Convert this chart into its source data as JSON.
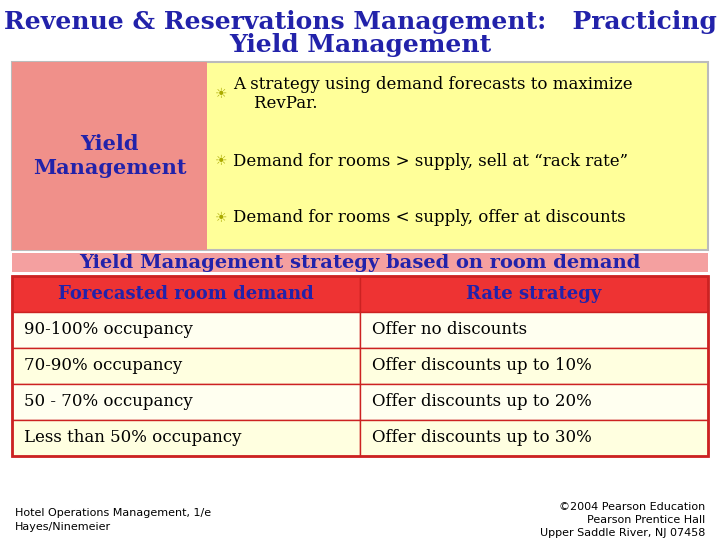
{
  "title_line1": "Revenue & Reservations Management:   Practicing",
  "title_line2": "Yield Management",
  "title_color": "#2222AA",
  "title_fontsize": 18,
  "bg_color": "#FFFFFF",
  "left_box_label": "Yield\nManagement",
  "left_box_bg": "#F0908A",
  "left_box_text_color": "#2222AA",
  "right_box_bg": "#FFFF99",
  "right_box_border": "#AAAAAA",
  "bullet_points": [
    "A strategy using demand forecasts to maximize\n    RevPar.",
    "Demand for rooms > supply, sell at “rack rate”",
    "Demand for rooms < supply, offer at discounts"
  ],
  "bullet_color": "#AAAA00",
  "bullet_text_color": "#000000",
  "bullet_fontsize": 12,
  "section_bar_text": "Yield Management strategy based on room demand",
  "section_bar_bg": "#F4A0A0",
  "section_bar_text_color": "#2222AA",
  "section_bar_fontsize": 14,
  "table_header": [
    "Forecasted room demand",
    "Rate strategy"
  ],
  "table_header_bg_left": "#DD2222",
  "table_header_bg_right": "#CC3333",
  "table_header_text_color": "#2222AA",
  "table_header_fontsize": 13,
  "table_rows": [
    [
      "90-100% occupancy",
      "Offer no discounts"
    ],
    [
      "70-90% occupancy",
      "Offer discounts up to 10%"
    ],
    [
      "50 - 70% occupancy",
      "Offer discounts up to 20%"
    ],
    [
      "Less than 50% occupancy",
      "Offer discounts up to 30%"
    ]
  ],
  "table_row_bg_odd": "#FFFFF0",
  "table_row_bg_even": "#FFFFE0",
  "table_row_border": "#CC2222",
  "table_text_color": "#000000",
  "table_fontsize": 12,
  "footer_left": "Hotel Operations Management, 1/e\nHayes/Ninemeier",
  "footer_right": "©2004 Pearson Education\nPearson Prentice Hall\nUpper Saddle River, NJ 07458",
  "footer_fontsize": 8,
  "footer_color": "#000000"
}
